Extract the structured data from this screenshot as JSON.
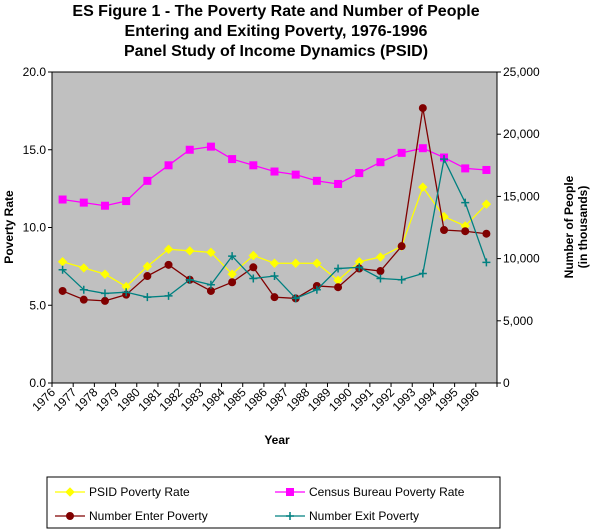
{
  "chart_data": {
    "type": "line",
    "title_lines": [
      "ES Figure 1 - The Poverty Rate and Number of People",
      "Entering and Exiting Poverty, 1976-1996",
      "Panel Study of Income Dynamics (PSID)"
    ],
    "xlabel": "Year",
    "ylabel": "Poverty Rate",
    "y2label_lines": [
      "Number of People",
      "(in thousands)"
    ],
    "categories": [
      "1976",
      "1977",
      "1978",
      "1979",
      "1980",
      "1981",
      "1982",
      "1983",
      "1984",
      "1985",
      "1986",
      "1987",
      "1988",
      "1989",
      "1990",
      "1991",
      "1992",
      "1993",
      "1994",
      "1995",
      "1996"
    ],
    "ylim": [
      0,
      20
    ],
    "yticks": [
      "0.0",
      "5.0",
      "10.0",
      "15.0",
      "20.0"
    ],
    "y2lim": [
      0,
      25000
    ],
    "y2ticks": [
      "0",
      "5,000",
      "10,000",
      "15,000",
      "20,000",
      "25,000"
    ],
    "plot_background": "#c0c0c0",
    "series": [
      {
        "name": "PSID Poverty Rate",
        "axis": "left",
        "color": "#ffff00",
        "marker": "diamond",
        "values": [
          7.8,
          7.4,
          7.0,
          6.2,
          7.5,
          8.6,
          8.5,
          8.4,
          7.0,
          8.2,
          7.7,
          7.7,
          7.7,
          6.6,
          7.8,
          8.1,
          8.8,
          12.6,
          10.7,
          10.1,
          11.5
        ]
      },
      {
        "name": "Census Bureau Poverty Rate",
        "axis": "left",
        "color": "#ff00ff",
        "marker": "square",
        "values": [
          11.8,
          11.6,
          11.4,
          11.7,
          13.0,
          14.0,
          15.0,
          15.2,
          14.4,
          14.0,
          13.6,
          13.4,
          13.0,
          12.8,
          13.5,
          14.2,
          14.8,
          15.1,
          14.5,
          13.8,
          13.7
        ]
      },
      {
        "name": "Number Enter Poverty",
        "axis": "right",
        "color": "#800000",
        "marker": "circle",
        "values": [
          7400,
          6700,
          6600,
          7100,
          8600,
          9500,
          8300,
          7400,
          8100,
          9300,
          6900,
          6800,
          7800,
          7700,
          9200,
          9000,
          11000,
          22100,
          12300,
          12200,
          12000
        ]
      },
      {
        "name": "Number Exit Poverty",
        "axis": "right",
        "color": "#008080",
        "marker": "plus",
        "values": [
          9100,
          7500,
          7200,
          7300,
          6900,
          7000,
          8300,
          7900,
          10200,
          8400,
          8600,
          6800,
          7500,
          9200,
          9300,
          8400,
          8300,
          8800,
          18000,
          14500,
          9700
        ]
      }
    ],
    "legend_position": "bottom"
  }
}
